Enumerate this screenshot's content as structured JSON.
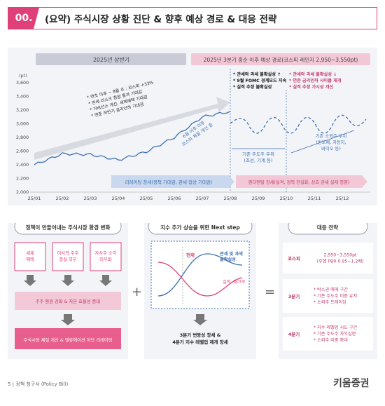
{
  "header": {
    "number": "00.",
    "title": "(요약) 주식시장 상황 진단 & 향후 예상 경로 & 대응 전략"
  },
  "chart": {
    "band_h1": "2025년 상반기",
    "band_h2": "2025년 3분기 중순 이후 예상 경로(코스피 레인지 2,950~3,550pt)",
    "unit": "(pt)",
    "y_ticks": [
      "3,600",
      "3,400",
      "3,200",
      "3,000",
      "2,800",
      "2,600",
      "2,400",
      "2,200",
      "2,000"
    ],
    "x_ticks": [
      "25/01",
      "25/02",
      "25/03",
      "25/04",
      "25/05",
      "25/06",
      "25/07",
      "25/08",
      "25/09",
      "25/10",
      "25/11",
      "25/12"
    ],
    "note_h1": [
      "* 연초 이후 ~ 8월 초 : 코스피 +33%",
      "* 관세 리스크 정점 통과 기대감",
      "* 거버넌스 개선, 세제혜택 기대감",
      "* 연준 하반기 금리인하 기대감"
    ],
    "note_q3_left": [
      "* 관세와 과세 불확실성 ↑",
      "* 9월 FOMC 경계모드 지속",
      "* 실적 추정 불확실성"
    ],
    "note_q3_right": [
      "* 관세와 과세 불확실성 ↓",
      "* 연준 금리인하 사이클 재개",
      "* 실적 추정 가시성 개선"
    ],
    "label_six": "6월 이후 이후\n코스피 체질 개선 중",
    "label_base": "기존 주도주 우위",
    "label_base2": "(조선, 기계 등)",
    "label_rotation": "기존 소외주 우위\n(반도체, 자동차,\n바이오 등)",
    "bottom_arrow1": "리레이팅 장세(정책 기대감, 관세 협상 기대감)",
    "bottom_arrow2": "펀더멘탈 장세(실적, 정책 현실화, 상호 관세 실제 영향)"
  },
  "chart_data": {
    "type": "line",
    "ylabel": "(pt)",
    "ylim": [
      2000,
      3600
    ],
    "x": [
      "25/01",
      "25/02",
      "25/03",
      "25/04",
      "25/05",
      "25/06",
      "25/07",
      "25/08"
    ],
    "series": [
      {
        "values": [
          2400,
          2560,
          2550,
          2470,
          2590,
          2800,
          3100,
          3180
        ]
      }
    ],
    "projection": {
      "range": [
        2950,
        3550
      ],
      "from": "25/08",
      "to": "25/12"
    }
  },
  "left_panel": {
    "title": "정책이 만들어내는 주식시장 환경 변화",
    "boxes": [
      "세제\n혜택",
      "이사의 주주\n충실 의무",
      "자사주 소각\n의무화"
    ],
    "mid_box": "주주 환원 강화 & 자본 효율성 증대",
    "bottom_box": "주식시장 체질 개선 & 밸류에이션 하단 리레이팅"
  },
  "center_panel": {
    "title": "지수 추가 상승을 위한 Next step",
    "now": "현재",
    "label_uncertainty": "관세 및 과세\n불확실성",
    "label_earnings": "실적, 매크로",
    "result": "3분기 변동성 장세 &\n4분기 지수 레벨업 재개 장세"
  },
  "right_panel": {
    "title": "대응 전략",
    "rows": [
      {
        "label": "코스피",
        "text": "2,950~3,550pt\n(후행 PBR 0.95~1.2배)"
      },
      {
        "label": "3분기",
        "text": "* 박스권 매매 구간\n* 기존 주도주 비중 유지\n* 소외주 트레이딩"
      },
      {
        "label": "4분기",
        "text": "* 지수 레벨업 시도 구간\n* 기존 주도주 차익실현\n* 소외주 비중 확대"
      }
    ]
  },
  "footer": {
    "text": "5  |  정책 청구서 (Policy Bill)",
    "logo": "키움증권"
  },
  "colors": {
    "accent": "#e0407a",
    "blue": "#3d6fb0",
    "gray_band": "#c9ccd6",
    "pink_band": "#f2c8d6"
  }
}
